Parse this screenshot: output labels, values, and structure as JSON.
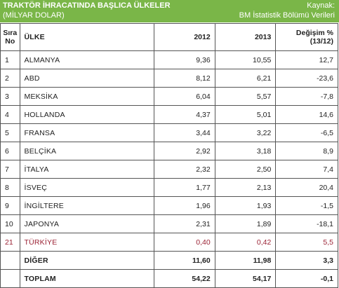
{
  "header": {
    "title": "TRAKTÖR İHRACATINDA BAŞLICA ÜLKELER",
    "subtitle": "(MİLYAR DOLAR)",
    "source_label": "Kaynak:",
    "source_value": "BM İstatistik Bölümü Verileri"
  },
  "columns": {
    "rank_line1": "Sıra",
    "rank_line2": "No",
    "country": "ÜLKE",
    "year1": "2012",
    "year2": "2013",
    "change_line1": "Değişim %",
    "change_line2": "(13/12)"
  },
  "rows": [
    {
      "rank": "1",
      "country": "ALMANYA",
      "y2012": "9,36",
      "y2013": "10,55",
      "change": "12,7"
    },
    {
      "rank": "2",
      "country": "ABD",
      "y2012": "8,12",
      "y2013": "6,21",
      "change": "-23,6"
    },
    {
      "rank": "3",
      "country": "MEKSİKA",
      "y2012": "6,04",
      "y2013": "5,57",
      "change": "-7,8"
    },
    {
      "rank": "4",
      "country": "HOLLANDA",
      "y2012": "4,37",
      "y2013": "5,01",
      "change": "14,6"
    },
    {
      "rank": "5",
      "country": "FRANSA",
      "y2012": "3,44",
      "y2013": "3,22",
      "change": "-6,5"
    },
    {
      "rank": "6",
      "country": "BELÇİKA",
      "y2012": "2,92",
      "y2013": "3,18",
      "change": "8,9"
    },
    {
      "rank": "7",
      "country": "İTALYA",
      "y2012": "2,32",
      "y2013": "2,50",
      "change": "7,4"
    },
    {
      "rank": "8",
      "country": "İSVEÇ",
      "y2012": "1,77",
      "y2013": "2,13",
      "change": "20,4"
    },
    {
      "rank": "9",
      "country": "İNGİLTERE",
      "y2012": "1,96",
      "y2013": "1,93",
      "change": "-1,5"
    },
    {
      "rank": "10",
      "country": "JAPONYA",
      "y2012": "2,31",
      "y2013": "1,89",
      "change": "-18,1"
    },
    {
      "rank": "21",
      "country": "TÜRKİYE",
      "y2012": "0,40",
      "y2013": "0,42",
      "change": "5,5"
    },
    {
      "rank": "",
      "country": "DİĞER",
      "y2012": "11,60",
      "y2013": "11,98",
      "change": "3,3"
    },
    {
      "rank": "",
      "country": "TOPLAM",
      "y2012": "54,22",
      "y2013": "54,17",
      "change": "-0,1"
    }
  ],
  "colors": {
    "header_bg": "#7ab648",
    "highlight_text": "#9b2335"
  }
}
